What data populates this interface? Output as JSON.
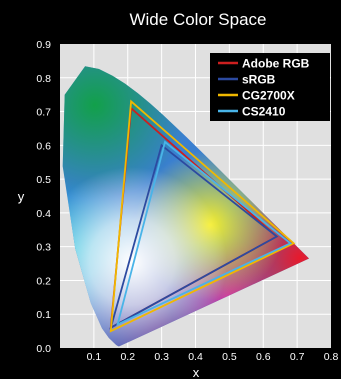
{
  "chart_data": {
    "type": "line",
    "title": "Wide Color Space",
    "xlabel": "x",
    "ylabel": "y",
    "xlim": [
      0,
      0.8
    ],
    "ylim": [
      0,
      0.9
    ],
    "x_ticks": [
      "0.1",
      "0.2",
      "0.3",
      "0.4",
      "0.5",
      "0.6",
      "0.7",
      "0.8"
    ],
    "y_ticks": [
      "0.0",
      "0.1",
      "0.2",
      "0.3",
      "0.4",
      "0.5",
      "0.6",
      "0.7",
      "0.8",
      "0.9"
    ],
    "grid": true,
    "legend_position": "top-right",
    "background": "#e0e0e0",
    "spectral_locus": [
      [
        0.175,
        0.005
      ],
      [
        0.174,
        0.005
      ],
      [
        0.172,
        0.005
      ],
      [
        0.166,
        0.009
      ],
      [
        0.144,
        0.03
      ],
      [
        0.124,
        0.058
      ],
      [
        0.091,
        0.133
      ],
      [
        0.045,
        0.295
      ],
      [
        0.008,
        0.538
      ],
      [
        0.014,
        0.75
      ],
      [
        0.074,
        0.834
      ],
      [
        0.115,
        0.826
      ],
      [
        0.155,
        0.806
      ],
      [
        0.193,
        0.782
      ],
      [
        0.23,
        0.754
      ],
      [
        0.266,
        0.724
      ],
      [
        0.302,
        0.692
      ],
      [
        0.374,
        0.624
      ],
      [
        0.444,
        0.555
      ],
      [
        0.512,
        0.487
      ],
      [
        0.575,
        0.424
      ],
      [
        0.627,
        0.372
      ],
      [
        0.666,
        0.334
      ],
      [
        0.692,
        0.308
      ],
      [
        0.735,
        0.265
      ]
    ],
    "series": [
      {
        "name": "Adobe RGB",
        "color": "#cc1f1f",
        "points": [
          [
            0.64,
            0.33
          ],
          [
            0.21,
            0.71
          ],
          [
            0.15,
            0.06
          ]
        ]
      },
      {
        "name": "sRGB",
        "color": "#2c4aa0",
        "points": [
          [
            0.64,
            0.33
          ],
          [
            0.3,
            0.6
          ],
          [
            0.15,
            0.06
          ]
        ]
      },
      {
        "name": "CG2700X",
        "color": "#f0b800",
        "points": [
          [
            0.69,
            0.31
          ],
          [
            0.21,
            0.73
          ],
          [
            0.15,
            0.05
          ]
        ]
      },
      {
        "name": "CS2410",
        "color": "#49b4e8",
        "points": [
          [
            0.68,
            0.31
          ],
          [
            0.31,
            0.61
          ],
          [
            0.17,
            0.07
          ]
        ]
      }
    ]
  }
}
